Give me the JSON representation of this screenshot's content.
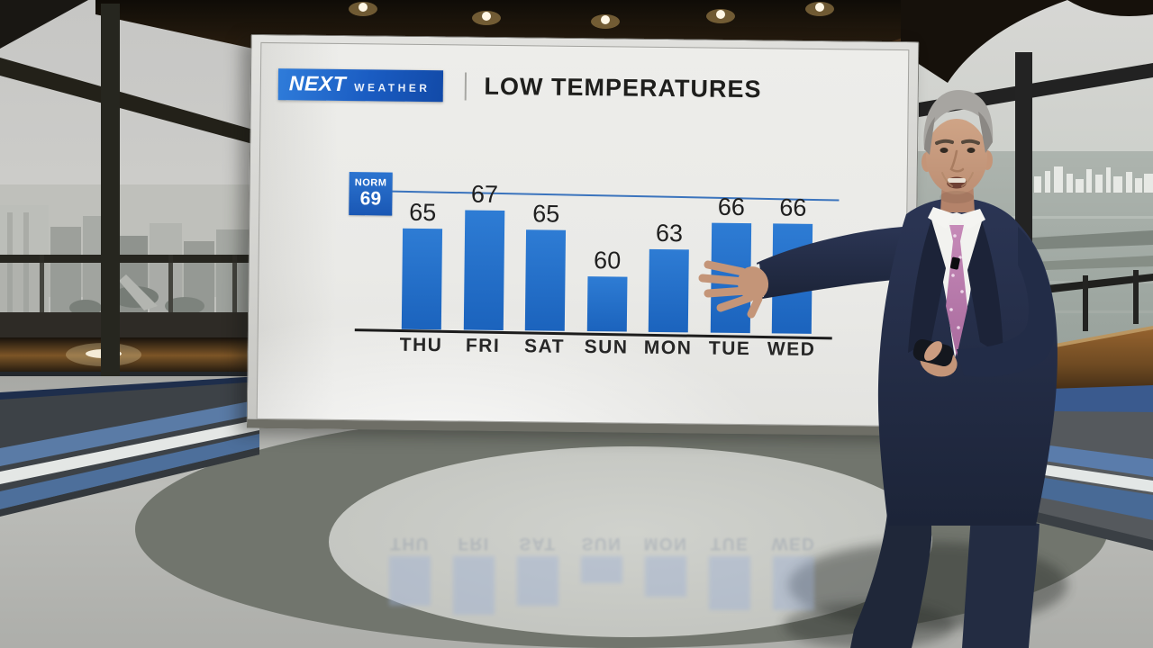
{
  "broadcast": {
    "brand": {
      "name_primary": "NEXT",
      "name_secondary": "WEATHER"
    },
    "headline": "LOW TEMPERATURES"
  },
  "chart_data": {
    "type": "bar",
    "title": "LOW TEMPERATURES",
    "categories": [
      "THU",
      "FRI",
      "SAT",
      "SUN",
      "MON",
      "TUE",
      "WED"
    ],
    "values": [
      65,
      67,
      65,
      60,
      63,
      66,
      66
    ],
    "norm_label": "NORM",
    "norm_value": 69,
    "ylim": [
      54,
      70
    ],
    "xlabel": "",
    "ylabel": "",
    "grid": false,
    "legend": false,
    "colors": {
      "bar": "#1e6cc8",
      "norm_line": "#3b74bd",
      "norm_box": "#2169c5",
      "logo_box": "#1a5cc2",
      "value_label": "#1f1f1f",
      "day_label": "#262626",
      "screen_background": "#eaeae7"
    }
  }
}
